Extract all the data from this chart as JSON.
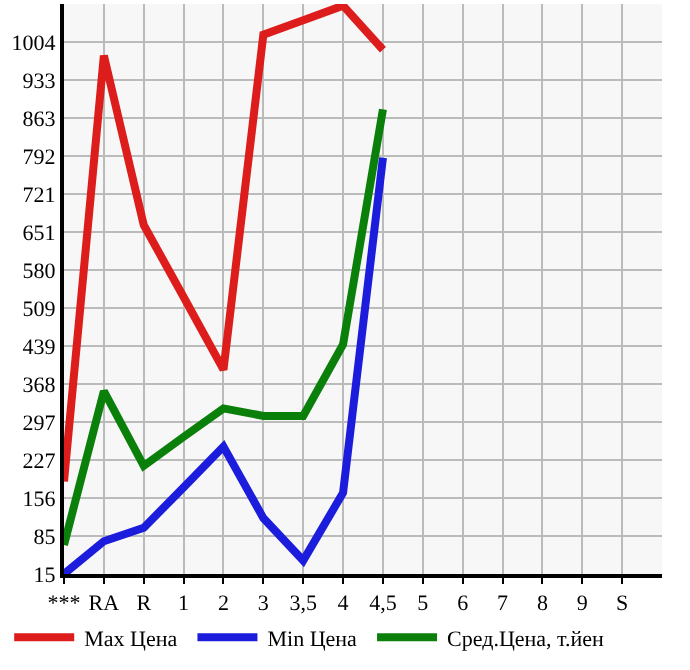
{
  "chart_data": {
    "type": "line",
    "categories": [
      "***",
      "RA",
      "R",
      "1",
      "2",
      "3",
      "3,5",
      "4",
      "4,5",
      "5",
      "6",
      "7",
      "8",
      "9",
      "S"
    ],
    "series": [
      {
        "name": "Max Цена",
        "color": "#dd1c1c",
        "values": [
          187,
          979,
          664,
          530,
          395,
          1018,
          1045,
          1072,
          990,
          null,
          null,
          null,
          null,
          null,
          null
        ]
      },
      {
        "name": "Min Цена",
        "color": "#1c1cdd",
        "values": [
          15,
          76,
          101,
          176,
          252,
          119,
          40,
          166,
          789,
          null,
          null,
          null,
          null,
          null,
          null
        ]
      },
      {
        "name": "Сред.Цена, т.йен",
        "color": "#0a800a",
        "values": [
          69,
          355,
          216,
          270,
          323,
          309,
          309,
          442,
          879,
          null,
          null,
          null,
          null,
          null,
          null
        ]
      }
    ],
    "ylim": [
      15,
      1075
    ],
    "yticks": [
      15,
      85,
      156,
      227,
      297,
      368,
      439,
      509,
      580,
      651,
      721,
      792,
      863,
      933,
      1004
    ],
    "grid": true,
    "legend": "bottom",
    "marker": "none",
    "line_style": "solid"
  }
}
